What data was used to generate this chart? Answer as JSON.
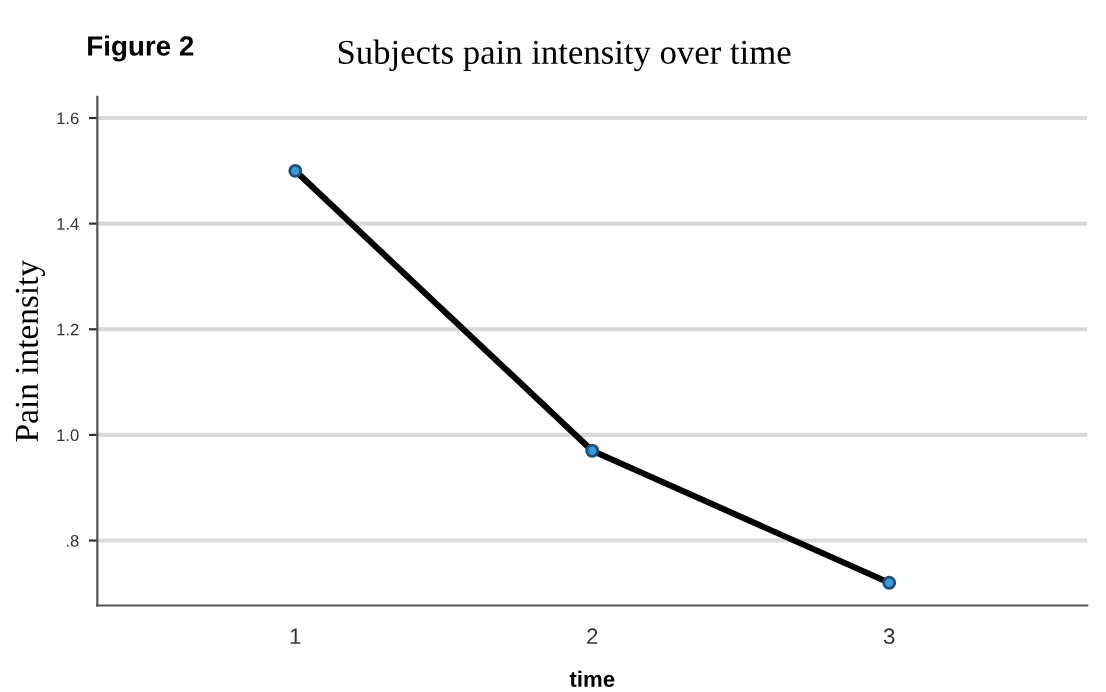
{
  "chart_data": {
    "type": "line",
    "title": "Subjects pain intensity over time",
    "xlabel": "time",
    "ylabel": "Pain intensity",
    "annotations": [
      "Figure 2"
    ],
    "categories": [
      "1",
      "2",
      "3"
    ],
    "series": [
      {
        "color": "#000000",
        "values": [
          1.5,
          0.97,
          0.72
        ]
      }
    ],
    "ylim": [
      0.677,
      1.64
    ],
    "yticks": [
      {
        "value": 0.8,
        "label": ".8"
      },
      {
        "value": 1.0,
        "label": "1.0"
      },
      {
        "value": 1.2,
        "label": "1.2"
      },
      {
        "value": 1.4,
        "label": "1.4"
      },
      {
        "value": 1.6,
        "label": "1.6"
      }
    ],
    "grid": "y",
    "marker": "circle",
    "line_style": "solid"
  }
}
